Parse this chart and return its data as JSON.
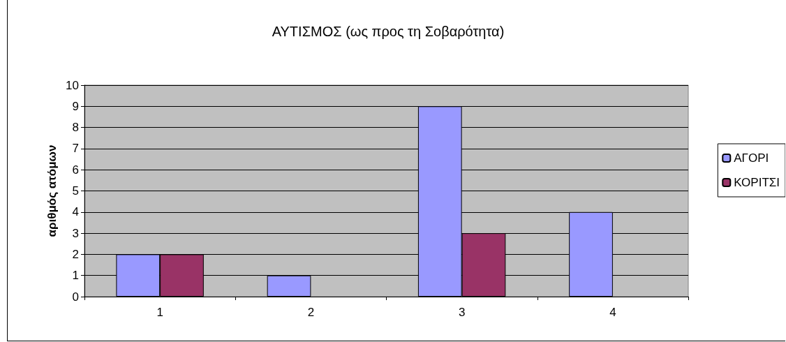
{
  "chart_data": {
    "type": "bar",
    "title": "ΑΥΤΙΣΜΟΣ (ως προς τη Σοβαρότητα)",
    "ylabel": "αριθμός ατόμων",
    "categories": [
      "1",
      "2",
      "3",
      "4"
    ],
    "series": [
      {
        "name": "ΑΓΟΡΙ",
        "color": "#9999ff",
        "values": [
          2,
          1,
          9,
          4
        ]
      },
      {
        "name": "ΚΟΡΙΤΣΙ",
        "color": "#993366",
        "values": [
          2,
          0,
          3,
          0
        ]
      }
    ],
    "ylim": [
      0,
      10
    ],
    "yticks": [
      0,
      1,
      2,
      3,
      4,
      5,
      6,
      7,
      8,
      9,
      10
    ],
    "grid": "y",
    "legend": "right"
  }
}
